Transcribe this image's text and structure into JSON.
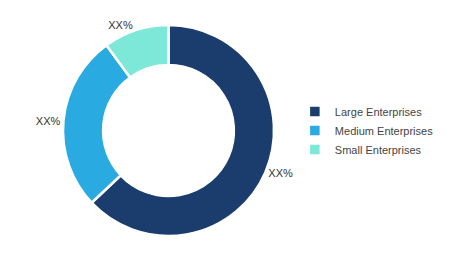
{
  "chart_data": {
    "type": "pie",
    "categories": [
      "Large Enterprises",
      "Medium Enterprises",
      "Small Enterprises"
    ],
    "values": [
      63,
      27,
      10
    ],
    "value_labels": [
      "XX%",
      "XX%",
      "XX%"
    ],
    "data_labels": true,
    "colors": [
      "#1b3d6e",
      "#29abe2",
      "#7de8d8"
    ],
    "legend": "right"
  }
}
